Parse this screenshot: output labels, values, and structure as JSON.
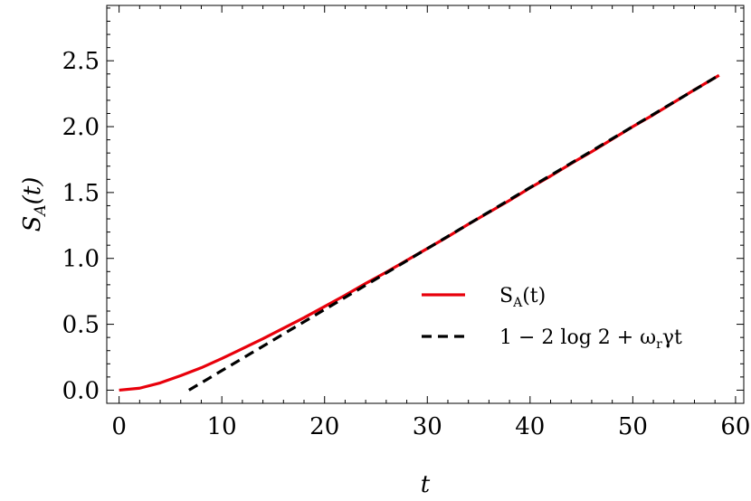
{
  "chart_data": {
    "type": "line",
    "xlabel": "t",
    "ylabel": "S_A(t)",
    "xlim": [
      -1.2,
      60.8
    ],
    "ylim": [
      -0.1,
      2.92
    ],
    "x_ticks": [
      0,
      10,
      20,
      30,
      40,
      50,
      60
    ],
    "x_tick_labels": [
      "0",
      "10",
      "20",
      "30",
      "40",
      "50",
      "60"
    ],
    "y_ticks": [
      0.0,
      0.5,
      1.0,
      1.5,
      2.0,
      2.5
    ],
    "y_tick_labels": [
      "0.0",
      "0.5",
      "1.0",
      "1.5",
      "2.0",
      "2.5"
    ],
    "grid": false,
    "legend_position": "bottom-right",
    "series": [
      {
        "name": "S_A(t)",
        "color": "#e8000b",
        "style": "solid",
        "x": [
          0,
          2,
          4,
          6,
          8,
          10,
          12,
          14,
          16,
          18,
          20,
          22,
          24,
          26,
          28,
          30,
          32,
          34,
          36,
          38,
          40,
          42,
          44,
          46,
          48,
          50,
          52,
          54,
          56,
          58.4
        ],
        "y": [
          0.0,
          0.015,
          0.055,
          0.11,
          0.17,
          0.24,
          0.315,
          0.39,
          0.47,
          0.55,
          0.635,
          0.72,
          0.81,
          0.895,
          0.985,
          1.075,
          1.165,
          1.26,
          1.35,
          1.44,
          1.535,
          1.625,
          1.72,
          1.81,
          1.905,
          2.0,
          2.09,
          2.185,
          2.28,
          2.39
        ]
      },
      {
        "name": "1 − 2 log 2 + ω_r γ t",
        "color": "#000000",
        "style": "dashed",
        "x": [
          6.8,
          58.4
        ],
        "y": [
          0.0,
          2.39
        ]
      }
    ],
    "legend": [
      {
        "label": "S",
        "sub": "A",
        "suffix": "(t)"
      },
      {
        "label": "1 − 2 log 2 + ω",
        "sub": "r",
        "suffix": "γt"
      }
    ]
  }
}
